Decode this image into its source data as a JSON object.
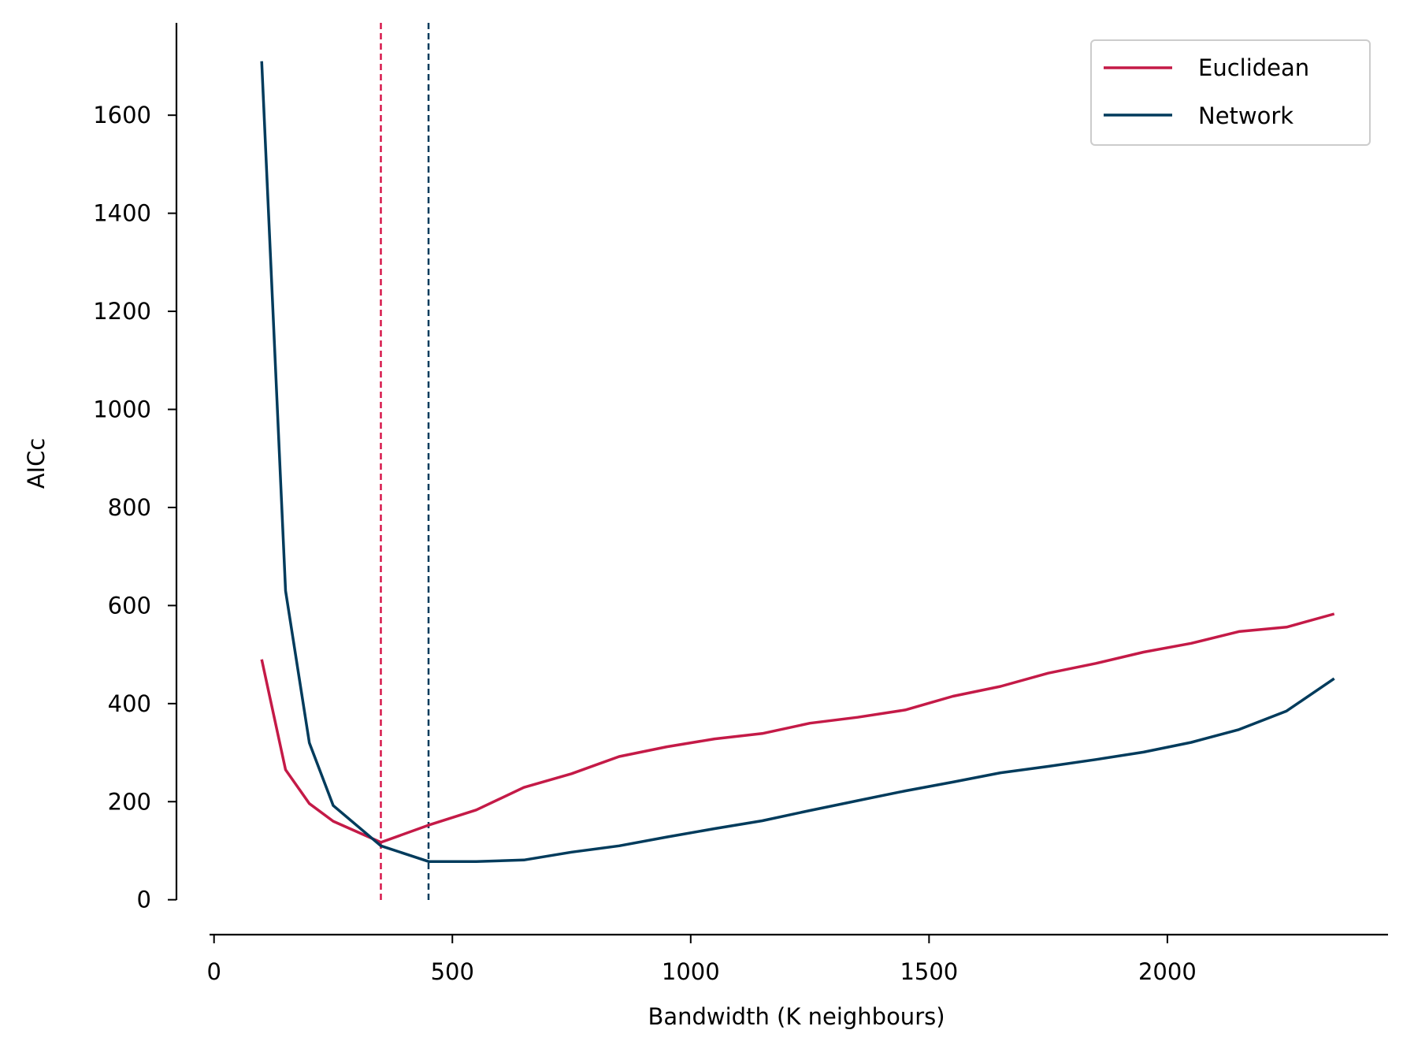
{
  "chart_data": {
    "type": "line",
    "title": "",
    "xlabel": "Bandwidth (K neighbours)",
    "ylabel": "AICc",
    "xlim": [
      -10,
      2455
    ],
    "ylim": [
      -20,
      1785
    ],
    "xticks": [
      0,
      500,
      1000,
      1500,
      2000
    ],
    "yticks": [
      0,
      200,
      400,
      600,
      800,
      1000,
      1200,
      1400,
      1600
    ],
    "grid": false,
    "legend_placement": "top-right",
    "x": [
      100,
      150,
      200,
      250,
      350,
      450,
      550,
      650,
      750,
      850,
      950,
      1050,
      1150,
      1250,
      1350,
      1450,
      1550,
      1650,
      1750,
      1850,
      1950,
      2050,
      2150,
      2250,
      2350
    ],
    "series": [
      {
        "name": "Euclidean",
        "color": "#c41a47",
        "values": [
          490,
          265,
          196,
          160,
          117,
          152,
          183,
          229,
          257,
          292,
          312,
          328,
          339,
          360,
          372,
          387,
          415,
          435,
          462,
          482,
          505,
          523,
          547,
          556,
          583
        ]
      },
      {
        "name": "Network",
        "color": "#003b5c",
        "values": [
          1710,
          630,
          320,
          192,
          110,
          78,
          78,
          81,
          97,
          110,
          128,
          145,
          161,
          182,
          202,
          222,
          240,
          259,
          272,
          286,
          301,
          321,
          347,
          385,
          451
        ]
      }
    ],
    "vlines": [
      {
        "x": 350,
        "color": "#d6174a",
        "style": "dashed",
        "series": "Euclidean"
      },
      {
        "x": 450,
        "color": "#003b5c",
        "style": "dashed",
        "series": "Network"
      }
    ]
  }
}
